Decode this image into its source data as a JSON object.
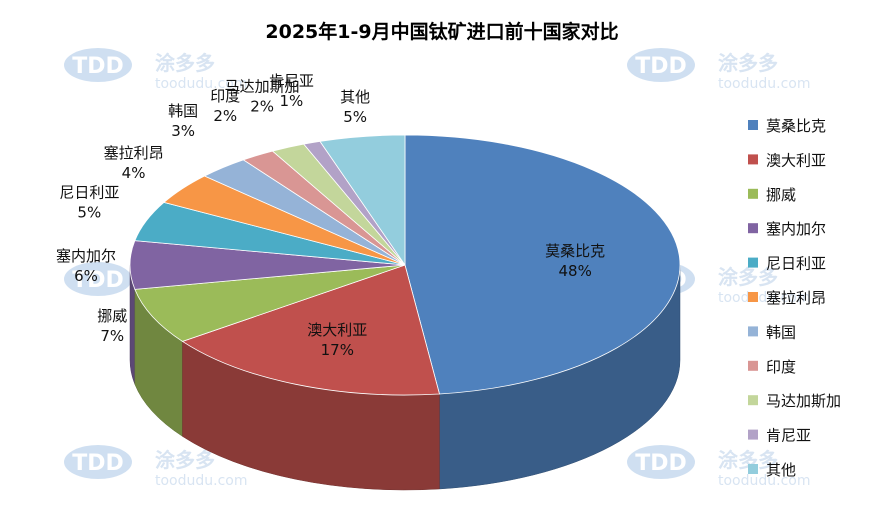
{
  "chart_data": {
    "type": "pie",
    "title": "2025年1-9月中国钛矿进口前十国家对比",
    "slices": [
      {
        "name": "莫桑比克",
        "value": 48,
        "label": "48%",
        "color": "#4f81bd"
      },
      {
        "name": "澳大利亚",
        "value": 17,
        "label": "17%",
        "color": "#c0504d"
      },
      {
        "name": "挪威",
        "value": 7,
        "label": "7%",
        "color": "#9bbb59"
      },
      {
        "name": "塞内加尔",
        "value": 6,
        "label": "6%",
        "color": "#8064a2"
      },
      {
        "name": "尼日利亚",
        "value": 5,
        "label": "5%",
        "color": "#4bacc6"
      },
      {
        "name": "塞拉利昂",
        "value": 4,
        "label": "4%",
        "color": "#f79646"
      },
      {
        "name": "韩国",
        "value": 3,
        "label": "3%",
        "color": "#95b3d7"
      },
      {
        "name": "印度",
        "value": 2,
        "label": "2%",
        "color": "#d99694"
      },
      {
        "name": "马达加斯加",
        "value": 2,
        "label": "2%",
        "color": "#c3d69b"
      },
      {
        "name": "肯尼亚",
        "value": 1,
        "label": "1%",
        "color": "#b2a2c7"
      },
      {
        "name": "其他",
        "value": 5,
        "label": "5%",
        "color": "#93cddd"
      }
    ],
    "legend_position": "right"
  },
  "watermark": {
    "logo": "TDD",
    "brand": "涂多多",
    "url": "toodudu.com"
  }
}
